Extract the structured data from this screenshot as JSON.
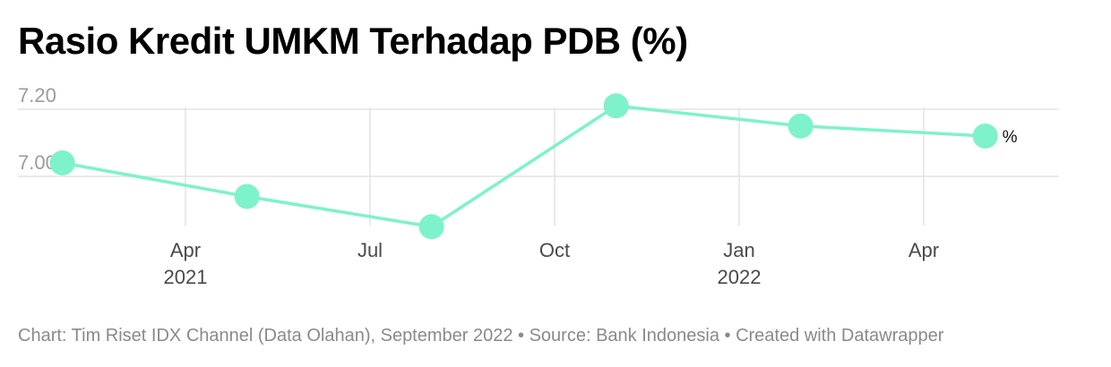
{
  "header": {
    "title": "Rasio Kredit UMKM Terhadap PDB (%)"
  },
  "footer": {
    "credit": "Chart: Tim Riset IDX Channel (Data Olahan), September 2022 • Source: Bank Indonesia • Created with Datawrapper"
  },
  "colors": {
    "line": "#7ef2ca",
    "grid": "#e3e3e3",
    "title": "#000000",
    "footer": "#8a8a8a"
  },
  "chart_data": {
    "type": "line",
    "title": "Rasio Kredit UMKM Terhadap PDB (%)",
    "value_suffix": "%",
    "x": [
      "2021-02",
      "2021-05",
      "2021-08",
      "2021-11",
      "2022-02",
      "2022-05"
    ],
    "values": [
      7.04,
      6.94,
      6.85,
      7.21,
      7.15,
      7.12
    ],
    "ylim": [
      6.8,
      7.28
    ],
    "yticks": [
      {
        "value": 7.0,
        "label": "7.00"
      },
      {
        "value": 7.2,
        "label": "7.20"
      }
    ],
    "xticks": [
      {
        "date": "2021-04",
        "label": "Apr",
        "year": "2021"
      },
      {
        "date": "2021-07",
        "label": "Jul",
        "year": ""
      },
      {
        "date": "2021-10",
        "label": "Oct",
        "year": ""
      },
      {
        "date": "2022-01",
        "label": "Jan",
        "year": "2022"
      },
      {
        "date": "2022-04",
        "label": "Apr",
        "year": ""
      }
    ],
    "grid": true,
    "markers": true
  }
}
